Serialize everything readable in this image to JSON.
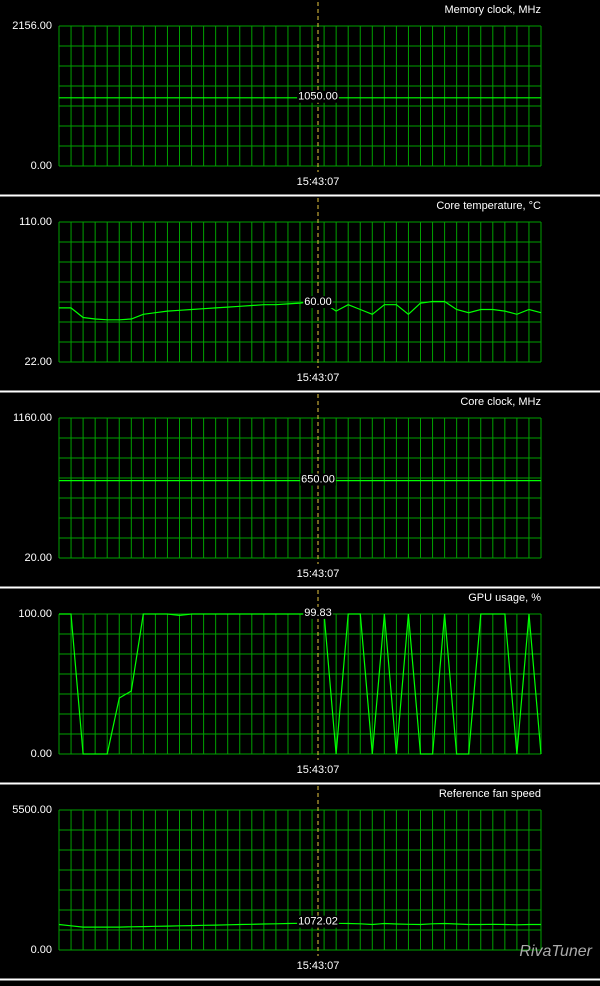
{
  "chart_data": [
    {
      "type": "line",
      "title": "Memory clock, MHz",
      "color": "#00ff00",
      "grid": true,
      "ylim": [
        0,
        2156
      ],
      "yticks": [
        {
          "value": 0,
          "label": "0.00"
        },
        {
          "value": 2156,
          "label": "2156.00"
        }
      ],
      "cursor_value": "1050.00",
      "cursor_time": "15:43:07",
      "values": [
        1050,
        1050,
        1050,
        1050,
        1050,
        1050,
        1050,
        1050,
        1050,
        1050,
        1050,
        1050,
        1050,
        1050,
        1050,
        1050,
        1050,
        1050,
        1050,
        1050,
        1050,
        1050,
        1050,
        1050,
        1050,
        1050,
        1050,
        1050,
        1050,
        1050,
        1050,
        1050,
        1050,
        1050,
        1050,
        1050,
        1050,
        1050,
        1050,
        1050,
        1050
      ]
    },
    {
      "type": "line",
      "title": "Core temperature, °C",
      "color": "#00ff00",
      "grid": true,
      "ylim": [
        22,
        110
      ],
      "yticks": [
        {
          "value": 22,
          "label": "22.00"
        },
        {
          "value": 110,
          "label": "110.00"
        }
      ],
      "cursor_value": "60.00",
      "cursor_time": "15:43:07",
      "values": [
        56,
        56,
        50,
        49,
        48.5,
        48.5,
        49,
        52,
        53,
        54,
        54.5,
        55,
        55.5,
        56,
        56.5,
        57,
        57.5,
        58,
        58,
        58.5,
        59,
        60,
        59,
        54,
        58,
        55,
        52,
        58,
        58,
        52,
        59,
        60,
        60,
        55,
        53,
        55,
        55,
        54,
        52,
        55,
        53
      ]
    },
    {
      "type": "line",
      "title": "Core clock, MHz",
      "color": "#00ff00",
      "grid": true,
      "ylim": [
        20,
        1160
      ],
      "yticks": [
        {
          "value": 20,
          "label": "20.00"
        },
        {
          "value": 1160,
          "label": "1160.00"
        }
      ],
      "cursor_value": "650.00",
      "cursor_time": "15:43:07",
      "values": [
        650,
        650,
        650,
        650,
        650,
        650,
        650,
        650,
        650,
        650,
        650,
        650,
        650,
        650,
        650,
        650,
        650,
        650,
        650,
        650,
        650,
        650,
        650,
        650,
        650,
        650,
        650,
        650,
        650,
        650,
        650,
        650,
        650,
        650,
        650,
        650,
        650,
        650,
        650,
        650,
        650
      ]
    },
    {
      "type": "line",
      "title": "GPU usage, %",
      "color": "#00ff00",
      "grid": true,
      "ylim": [
        0,
        100
      ],
      "yticks": [
        {
          "value": 0,
          "label": "0.00"
        },
        {
          "value": 100,
          "label": "100.00"
        }
      ],
      "cursor_value": "99.83",
      "cursor_time": "15:43:07",
      "values": [
        100,
        100,
        0,
        0,
        0,
        40,
        45,
        100,
        100,
        100,
        99,
        100,
        100,
        100,
        100,
        100,
        100,
        100,
        100,
        100,
        100,
        100,
        100,
        0,
        100,
        100,
        0,
        100,
        0,
        100,
        0,
        0,
        100,
        0,
        0,
        100,
        100,
        100,
        0,
        100,
        0
      ]
    },
    {
      "type": "line",
      "title": "Reference fan speed",
      "color": "#00ff00",
      "grid": true,
      "ylim": [
        0,
        5500
      ],
      "yticks": [
        {
          "value": 0,
          "label": "0.00"
        },
        {
          "value": 5500,
          "label": "5500.00"
        }
      ],
      "cursor_value": "1072.02",
      "cursor_time": "15:43:07",
      "values": [
        1000,
        950,
        900,
        900,
        900,
        900,
        910,
        920,
        930,
        940,
        950,
        960,
        970,
        980,
        990,
        1000,
        1010,
        1020,
        1030,
        1040,
        1050,
        1060,
        1072,
        1050,
        1040,
        1030,
        1000,
        1040,
        1020,
        1010,
        1000,
        1030,
        1040,
        1020,
        1000,
        1000,
        1010,
        1000,
        990,
        1000,
        1000
      ]
    }
  ],
  "watermark": "RivaTuner"
}
